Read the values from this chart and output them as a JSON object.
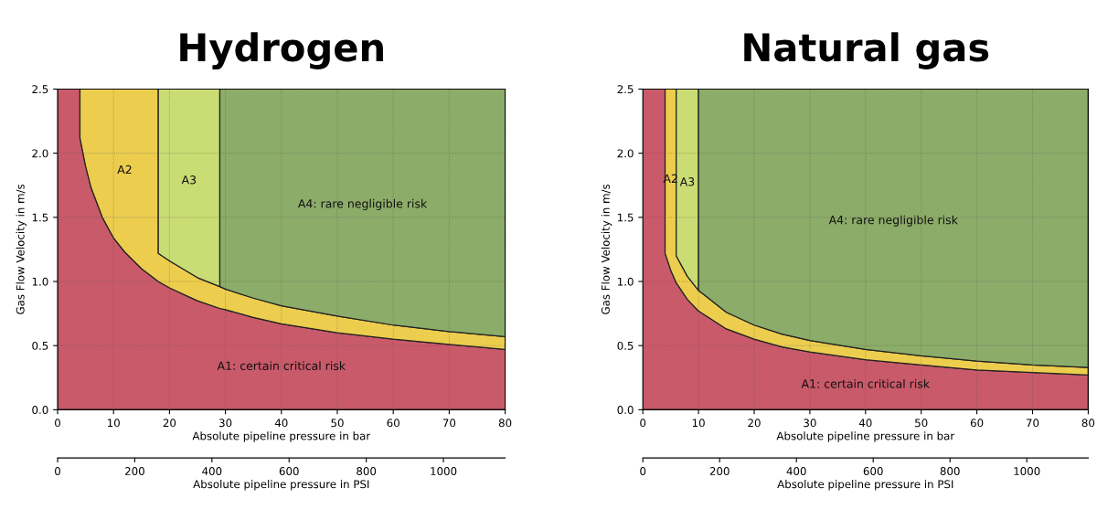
{
  "chart_data": [
    {
      "type": "area",
      "title": "Hydrogen",
      "xlabel": "Absolute pipeline pressure in bar",
      "ylabel": "Gas Flow Velocity in m/s",
      "x2label": "Absolute pipeline pressure in PSI",
      "stacked": true,
      "grid": true,
      "x": [
        0,
        4,
        4,
        5,
        6,
        8,
        10,
        12,
        15,
        18,
        18,
        20,
        25,
        29,
        29,
        30,
        35,
        40,
        50,
        60,
        70,
        80
      ],
      "series": [
        {
          "name": "A1: certain critical risk",
          "color": "#c85a6a",
          "values": [
            2.5,
            2.5,
            2.12,
            1.9,
            1.73,
            1.5,
            1.34,
            1.23,
            1.1,
            1.0,
            1.0,
            0.95,
            0.85,
            0.79,
            0.79,
            0.78,
            0.72,
            0.67,
            0.6,
            0.55,
            0.51,
            0.47
          ]
        },
        {
          "name": "A2",
          "color": "#edcd4e",
          "values": [
            null,
            0,
            0.38,
            0.6,
            0.77,
            1.0,
            1.16,
            1.27,
            1.4,
            1.5,
            0.22,
            0.21,
            0.18,
            0.17,
            0.17,
            0.16,
            0.15,
            0.14,
            0.13,
            0.11,
            0.1,
            0.1
          ]
        },
        {
          "name": "A3",
          "color": "#cadc74",
          "values": [
            null,
            null,
            null,
            null,
            null,
            null,
            null,
            null,
            null,
            0,
            1.28,
            1.34,
            1.47,
            1.54,
            0,
            null,
            null,
            null,
            null,
            null,
            null,
            null
          ]
        },
        {
          "name": "A4: rare negligible risk",
          "color": "#8cac69",
          "values": [
            null,
            null,
            null,
            null,
            null,
            null,
            null,
            null,
            null,
            null,
            null,
            null,
            null,
            0,
            1.54,
            1.56,
            1.63,
            1.69,
            1.77,
            1.84,
            1.89,
            1.93
          ]
        }
      ],
      "xlim": [
        0,
        80
      ],
      "xticks": [
        0,
        10,
        20,
        30,
        40,
        50,
        60,
        70,
        80
      ],
      "ylim": [
        0,
        2.5
      ],
      "yticks": [
        {
          "value": 0,
          "label": "0.0"
        },
        0.5,
        {
          "value": 1,
          "label": "1.0"
        },
        1.5,
        {
          "value": 2,
          "label": "2.0"
        },
        2.5
      ],
      "x2lim": [
        0,
        1160
      ],
      "x2ticks": [
        0,
        200,
        400,
        600,
        800,
        1000
      ]
    },
    {
      "type": "area",
      "title": "Natural gas",
      "xlabel": "Absolute pipeline pressure in bar",
      "ylabel": "Gas Flow Velocity in m/s",
      "x2label": "Absolute pipeline pressure in PSI",
      "stacked": true,
      "grid": true,
      "x": [
        0,
        4,
        4,
        5,
        6,
        6,
        8,
        10,
        10,
        15,
        20,
        25,
        30,
        40,
        50,
        60,
        70,
        80
      ],
      "series": [
        {
          "name": "A1: certain critical risk",
          "color": "#c85a6a",
          "values": [
            2.5,
            2.5,
            1.22,
            1.09,
            0.99,
            0.99,
            0.86,
            0.77,
            0.77,
            0.63,
            0.55,
            0.49,
            0.45,
            0.39,
            0.35,
            0.31,
            0.29,
            0.27
          ]
        },
        {
          "name": "A2",
          "color": "#edcd4e",
          "values": [
            null,
            0,
            1.28,
            1.41,
            1.51,
            0.21,
            0.18,
            0.16,
            0.16,
            0.13,
            0.11,
            0.1,
            0.09,
            0.08,
            0.07,
            0.07,
            0.06,
            0.06
          ]
        },
        {
          "name": "A3",
          "color": "#cadc74",
          "values": [
            null,
            null,
            null,
            null,
            0,
            1.3,
            1.46,
            1.57,
            0,
            null,
            null,
            null,
            null,
            null,
            null,
            null,
            null,
            null
          ]
        },
        {
          "name": "A4: rare negligible risk",
          "color": "#8cac69",
          "values": [
            null,
            null,
            null,
            null,
            null,
            null,
            null,
            0,
            1.57,
            1.74,
            1.84,
            1.91,
            1.96,
            2.03,
            2.08,
            2.12,
            2.15,
            2.17
          ]
        }
      ],
      "xlim": [
        0,
        80
      ],
      "xticks": [
        0,
        10,
        20,
        30,
        40,
        50,
        60,
        70,
        80
      ],
      "ylim": [
        0,
        2.5
      ],
      "yticks": [
        {
          "value": 0,
          "label": "0.0"
        },
        0.5,
        {
          "value": 1,
          "label": "1.0"
        },
        1.5,
        {
          "value": 2,
          "label": "2.0"
        },
        2.5
      ],
      "x2lim": [
        0,
        1160
      ],
      "x2ticks": [
        0,
        200,
        400,
        600,
        800,
        1000
      ]
    }
  ]
}
